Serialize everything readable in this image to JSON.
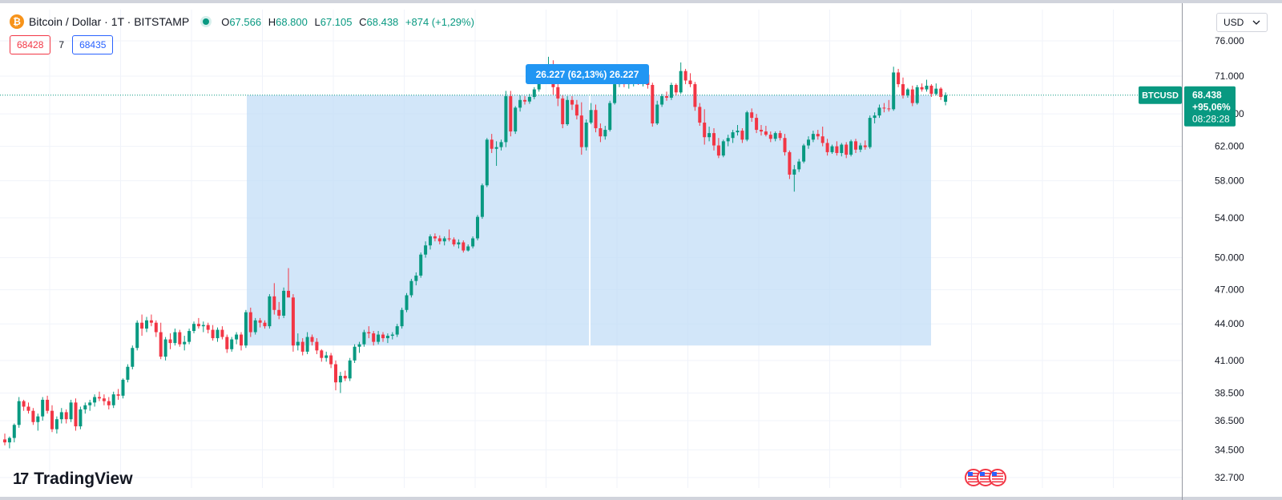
{
  "header": {
    "logo_glyph": "₿",
    "title": "Bitcoin / Dollar · 1T · BITSTAMP",
    "ohlc": {
      "open_label": "O",
      "open": "67.566",
      "high_label": "H",
      "high": "68.800",
      "low_label": "L",
      "low": "67.105",
      "close_label": "C",
      "close": "68.438",
      "change": "+874 (+1,29%)"
    },
    "sell_price": "68428",
    "spread": "7",
    "buy_price": "68435"
  },
  "currency": {
    "label": "USD",
    "icon": "chevron-down-icon"
  },
  "branding": {
    "logo_mark": "17",
    "logo_text": "TradingView"
  },
  "colors": {
    "up": "#089981",
    "down": "#f23645",
    "range_fill": "#bfdbf7",
    "range_label": "#2196f3"
  },
  "chart_data": {
    "type": "candlestick",
    "symbol": "BTCUSD",
    "axis_ticks": [
      "76.000",
      "71.000",
      "66.000",
      "62.000",
      "58.000",
      "54.000",
      "50.000",
      "47.000",
      "44.000",
      "41.000",
      "38.500",
      "36.500",
      "34.500",
      "32.700"
    ],
    "axis_tick_values": [
      76000,
      71000,
      66000,
      62000,
      58000,
      54000,
      50000,
      47000,
      44000,
      41000,
      38500,
      36500,
      34500,
      32700
    ],
    "scale": "log",
    "last_price_label": {
      "symbol": "BTCUSD",
      "price": "68.438",
      "change": "+95,06%",
      "timer": "08:28:28"
    },
    "price_range": {
      "label": "26.227 (62,13%) 26.227",
      "from": 42200,
      "to": 68438
    },
    "candles": [
      [
        35200,
        35600,
        34800,
        35000
      ],
      [
        35000,
        35400,
        34600,
        35300
      ],
      [
        35300,
        36300,
        35000,
        36200
      ],
      [
        36200,
        38200,
        36000,
        37900
      ],
      [
        37900,
        38000,
        37200,
        37500
      ],
      [
        37500,
        37800,
        37000,
        37200
      ],
      [
        37200,
        37400,
        36200,
        36400
      ],
      [
        36400,
        37000,
        35800,
        36800
      ],
      [
        36800,
        38200,
        36500,
        38000
      ],
      [
        38000,
        38300,
        37000,
        37200
      ],
      [
        37200,
        37600,
        35700,
        35900
      ],
      [
        35900,
        36800,
        35600,
        36600
      ],
      [
        36600,
        37400,
        36300,
        37100
      ],
      [
        37100,
        37300,
        36300,
        36600
      ],
      [
        36600,
        38000,
        36400,
        37800
      ],
      [
        37800,
        38100,
        35800,
        36100
      ],
      [
        36100,
        37500,
        35900,
        37300
      ],
      [
        37300,
        37800,
        37000,
        37600
      ],
      [
        37600,
        38000,
        37200,
        37800
      ],
      [
        37800,
        38400,
        37500,
        38200
      ],
      [
        38200,
        38600,
        37900,
        38100
      ],
      [
        38100,
        38400,
        37600,
        37900
      ],
      [
        37900,
        38200,
        37300,
        37600
      ],
      [
        37600,
        38600,
        37400,
        38400
      ],
      [
        38400,
        38800,
        38000,
        38300
      ],
      [
        38300,
        39600,
        38100,
        39500
      ],
      [
        39500,
        40700,
        39300,
        40500
      ],
      [
        40500,
        42200,
        40300,
        42000
      ],
      [
        42000,
        44300,
        41800,
        44100
      ],
      [
        44100,
        44800,
        43000,
        43600
      ],
      [
        43600,
        44600,
        43300,
        44300
      ],
      [
        44300,
        44800,
        43800,
        44100
      ],
      [
        44100,
        44300,
        42900,
        43300
      ],
      [
        43300,
        44100,
        41100,
        41300
      ],
      [
        41300,
        42900,
        41000,
        42700
      ],
      [
        42700,
        43200,
        41900,
        42400
      ],
      [
        42400,
        43600,
        42200,
        43300
      ],
      [
        43300,
        43500,
        42100,
        42300
      ],
      [
        42300,
        43000,
        41800,
        42500
      ],
      [
        42500,
        43600,
        42300,
        43400
      ],
      [
        43400,
        44200,
        43200,
        44000
      ],
      [
        44000,
        44500,
        43600,
        43800
      ],
      [
        43800,
        44200,
        43300,
        43900
      ],
      [
        43900,
        44100,
        43200,
        43500
      ],
      [
        43500,
        43900,
        42600,
        42800
      ],
      [
        42800,
        43700,
        42500,
        43500
      ],
      [
        43500,
        43800,
        42700,
        42900
      ],
      [
        42900,
        43100,
        41600,
        41900
      ],
      [
        41900,
        42900,
        41700,
        42700
      ],
      [
        42700,
        43300,
        42300,
        43100
      ],
      [
        43100,
        43300,
        41800,
        42200
      ],
      [
        42200,
        45200,
        42000,
        45000
      ],
      [
        45000,
        45400,
        42900,
        43300
      ],
      [
        43300,
        44500,
        43100,
        44300
      ],
      [
        44300,
        44500,
        43700,
        44100
      ],
      [
        44100,
        44300,
        43600,
        43800
      ],
      [
        43800,
        46600,
        43600,
        46400
      ],
      [
        46400,
        47600,
        44800,
        45200
      ],
      [
        45200,
        45900,
        44400,
        44700
      ],
      [
        44700,
        47200,
        44500,
        46900
      ],
      [
        46900,
        49000,
        46600,
        46300
      ],
      [
        46300,
        46600,
        41700,
        42200
      ],
      [
        42200,
        43200,
        41800,
        42500
      ],
      [
        42500,
        42800,
        41400,
        41700
      ],
      [
        41700,
        43300,
        41500,
        42900
      ],
      [
        42900,
        43100,
        42200,
        42500
      ],
      [
        42500,
        42800,
        41500,
        41800
      ],
      [
        41800,
        41900,
        40900,
        41200
      ],
      [
        41200,
        41700,
        40900,
        41400
      ],
      [
        41400,
        41600,
        40400,
        40700
      ],
      [
        40700,
        41000,
        38700,
        39300
      ],
      [
        39300,
        40100,
        38500,
        39800
      ],
      [
        39800,
        40200,
        39400,
        39600
      ],
      [
        39600,
        41200,
        39400,
        41000
      ],
      [
        41000,
        42300,
        40800,
        42100
      ],
      [
        42100,
        42500,
        41600,
        42300
      ],
      [
        42300,
        43500,
        42100,
        43300
      ],
      [
        43300,
        43800,
        42800,
        43200
      ],
      [
        43200,
        43400,
        42200,
        42500
      ],
      [
        42500,
        43400,
        42300,
        43100
      ],
      [
        43100,
        43300,
        42500,
        42800
      ],
      [
        42800,
        43200,
        42400,
        43000
      ],
      [
        43000,
        43300,
        42700,
        43100
      ],
      [
        43100,
        44000,
        42900,
        43800
      ],
      [
        43800,
        45400,
        43600,
        45200
      ],
      [
        45200,
        46700,
        45000,
        46500
      ],
      [
        46500,
        48000,
        46300,
        47800
      ],
      [
        47800,
        48600,
        47400,
        48300
      ],
      [
        48300,
        50500,
        48100,
        50300
      ],
      [
        50300,
        51600,
        50000,
        51200
      ],
      [
        51200,
        52300,
        50800,
        52100
      ],
      [
        52100,
        52400,
        51600,
        51900
      ],
      [
        51900,
        52200,
        51300,
        51600
      ],
      [
        51600,
        52100,
        51200,
        51900
      ],
      [
        51900,
        52800,
        51600,
        51800
      ],
      [
        51800,
        52000,
        51100,
        51300
      ],
      [
        51300,
        51800,
        50900,
        51500
      ],
      [
        51500,
        51700,
        50500,
        50700
      ],
      [
        50700,
        51300,
        50600,
        51100
      ],
      [
        51100,
        52100,
        50900,
        51900
      ],
      [
        51900,
        54300,
        51700,
        54100
      ],
      [
        54100,
        57700,
        53900,
        57500
      ],
      [
        57500,
        63000,
        57300,
        62800
      ],
      [
        62800,
        63500,
        61200,
        61700
      ],
      [
        61700,
        62600,
        59700,
        61900
      ],
      [
        61900,
        62800,
        61500,
        62500
      ],
      [
        62500,
        69000,
        61900,
        68300
      ],
      [
        68300,
        69000,
        63200,
        63800
      ],
      [
        63800,
        67000,
        63500,
        66800
      ],
      [
        66800,
        68400,
        66300,
        67800
      ],
      [
        67800,
        68300,
        67200,
        67600
      ],
      [
        67600,
        68600,
        67300,
        68200
      ],
      [
        68200,
        69500,
        67900,
        69200
      ],
      [
        69200,
        71500,
        68900,
        71200
      ],
      [
        71200,
        72500,
        70500,
        71800
      ],
      [
        71800,
        73700,
        71200,
        72500
      ],
      [
        72500,
        73200,
        68500,
        69500
      ],
      [
        69500,
        70800,
        67000,
        68000
      ],
      [
        68000,
        68400,
        64200,
        64700
      ],
      [
        64700,
        68300,
        64500,
        67800
      ],
      [
        67800,
        68300,
        66500,
        67200
      ],
      [
        67200,
        67800,
        65300,
        65800
      ],
      [
        65800,
        67500,
        61000,
        61900
      ],
      [
        61900,
        65300,
        61500,
        64900
      ],
      [
        64900,
        67400,
        64700,
        66500
      ],
      [
        66500,
        67200,
        63700,
        64200
      ],
      [
        64200,
        64800,
        62500,
        63200
      ],
      [
        63200,
        64500,
        62800,
        64000
      ],
      [
        64000,
        67700,
        63800,
        67400
      ],
      [
        67400,
        70200,
        67200,
        69900
      ],
      [
        69900,
        71100,
        69500,
        70500
      ],
      [
        70500,
        71300,
        69500,
        69900
      ],
      [
        69900,
        70500,
        69300,
        70200
      ],
      [
        70200,
        71400,
        69600,
        70800
      ],
      [
        70800,
        71200,
        69800,
        70000
      ],
      [
        70000,
        71600,
        69600,
        71200
      ],
      [
        71200,
        71400,
        69300,
        69800
      ],
      [
        69800,
        70100,
        64400,
        64800
      ],
      [
        64800,
        67700,
        64600,
        67200
      ],
      [
        67200,
        68600,
        66900,
        68300
      ],
      [
        68300,
        68900,
        67700,
        68100
      ],
      [
        68100,
        70100,
        67800,
        69800
      ],
      [
        69800,
        70000,
        68400,
        68800
      ],
      [
        68800,
        72900,
        68600,
        71700
      ],
      [
        71700,
        72000,
        69900,
        70400
      ],
      [
        70400,
        71400,
        69500,
        69900
      ],
      [
        69900,
        70200,
        66400,
        66900
      ],
      [
        66900,
        67400,
        64500,
        64900
      ],
      [
        64900,
        66600,
        62200,
        63100
      ],
      [
        63100,
        64400,
        62600,
        63600
      ],
      [
        63600,
        64200,
        61500,
        62100
      ],
      [
        62100,
        63000,
        60600,
        60900
      ],
      [
        60900,
        62800,
        60700,
        62600
      ],
      [
        62600,
        63400,
        62000,
        63000
      ],
      [
        63000,
        64000,
        62400,
        63700
      ],
      [
        63700,
        64600,
        63300,
        63900
      ],
      [
        63900,
        64200,
        62400,
        62800
      ],
      [
        62800,
        66400,
        62600,
        66200
      ],
      [
        66200,
        66700,
        65000,
        65500
      ],
      [
        65500,
        66000,
        63600,
        64000
      ],
      [
        64000,
        64600,
        63300,
        63800
      ],
      [
        63800,
        64500,
        63200,
        63400
      ],
      [
        63400,
        63800,
        62500,
        62900
      ],
      [
        62900,
        63800,
        62600,
        63600
      ],
      [
        63600,
        63900,
        62700,
        63000
      ],
      [
        63000,
        63500,
        60900,
        61300
      ],
      [
        61300,
        61500,
        58200,
        58700
      ],
      [
        58700,
        59800,
        56800,
        59300
      ],
      [
        59300,
        60500,
        59000,
        60200
      ],
      [
        60200,
        62300,
        60000,
        62100
      ],
      [
        62100,
        63200,
        61700,
        62800
      ],
      [
        62800,
        63900,
        62500,
        63500
      ],
      [
        63500,
        64000,
        62800,
        63200
      ],
      [
        63200,
        64400,
        62000,
        62400
      ],
      [
        62400,
        62900,
        60900,
        61300
      ],
      [
        61300,
        62200,
        61100,
        62000
      ],
      [
        62000,
        62600,
        60900,
        61200
      ],
      [
        61200,
        62400,
        60800,
        62200
      ],
      [
        62200,
        62500,
        60600,
        61000
      ],
      [
        61000,
        62800,
        60800,
        62600
      ],
      [
        62600,
        62900,
        61200,
        61600
      ],
      [
        61600,
        62400,
        61300,
        62100
      ],
      [
        62100,
        62700,
        61600,
        61900
      ],
      [
        61900,
        65800,
        61700,
        65500
      ],
      [
        65500,
        66200,
        64800,
        65800
      ],
      [
        65800,
        67200,
        65500,
        66800
      ],
      [
        66800,
        67400,
        66200,
        66700
      ],
      [
        66700,
        67800,
        66300,
        66600
      ],
      [
        66600,
        72300,
        66400,
        71500
      ],
      [
        71500,
        72000,
        69500,
        69900
      ],
      [
        69900,
        70800,
        68000,
        68400
      ],
      [
        68400,
        69400,
        68100,
        69200
      ],
      [
        69200,
        69700,
        67000,
        67400
      ],
      [
        67400,
        69800,
        67200,
        69500
      ],
      [
        69500,
        70000,
        68900,
        69200
      ],
      [
        69200,
        70500,
        68900,
        69700
      ],
      [
        69700,
        69900,
        68200,
        68600
      ],
      [
        68600,
        70000,
        68400,
        69300
      ],
      [
        69300,
        69500,
        67800,
        68200
      ],
      [
        67566,
        68800,
        67105,
        68438
      ]
    ]
  }
}
